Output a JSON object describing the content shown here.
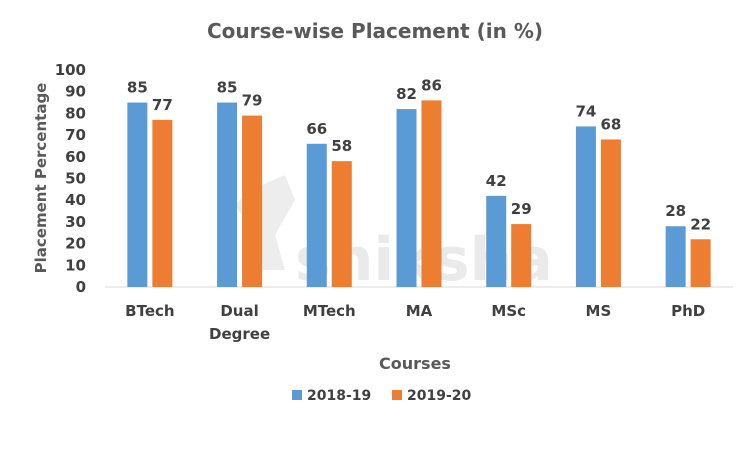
{
  "chart_data": {
    "type": "bar",
    "title": "Course-wise Placement (in %)",
    "xlabel": "Courses",
    "ylabel": "Placement Percentage",
    "categories": [
      [
        "BTech"
      ],
      [
        "Dual",
        "Degree"
      ],
      [
        "MTech"
      ],
      [
        "MA"
      ],
      [
        "MSc"
      ],
      [
        "MS"
      ],
      [
        "PhD"
      ]
    ],
    "series": [
      {
        "name": "2018-19",
        "color": "#5b9bd5",
        "values": [
          85,
          85,
          66,
          82,
          42,
          74,
          28
        ]
      },
      {
        "name": "2019-20",
        "color": "#ed7d31",
        "values": [
          77,
          79,
          58,
          86,
          29,
          68,
          22
        ]
      }
    ],
    "ylim": [
      0,
      100
    ],
    "yticks": [
      0,
      10,
      20,
      30,
      40,
      50,
      60,
      70,
      80,
      90,
      100
    ],
    "grid": false,
    "legend": "bottom"
  },
  "watermark": {
    "text": "shiksha"
  }
}
